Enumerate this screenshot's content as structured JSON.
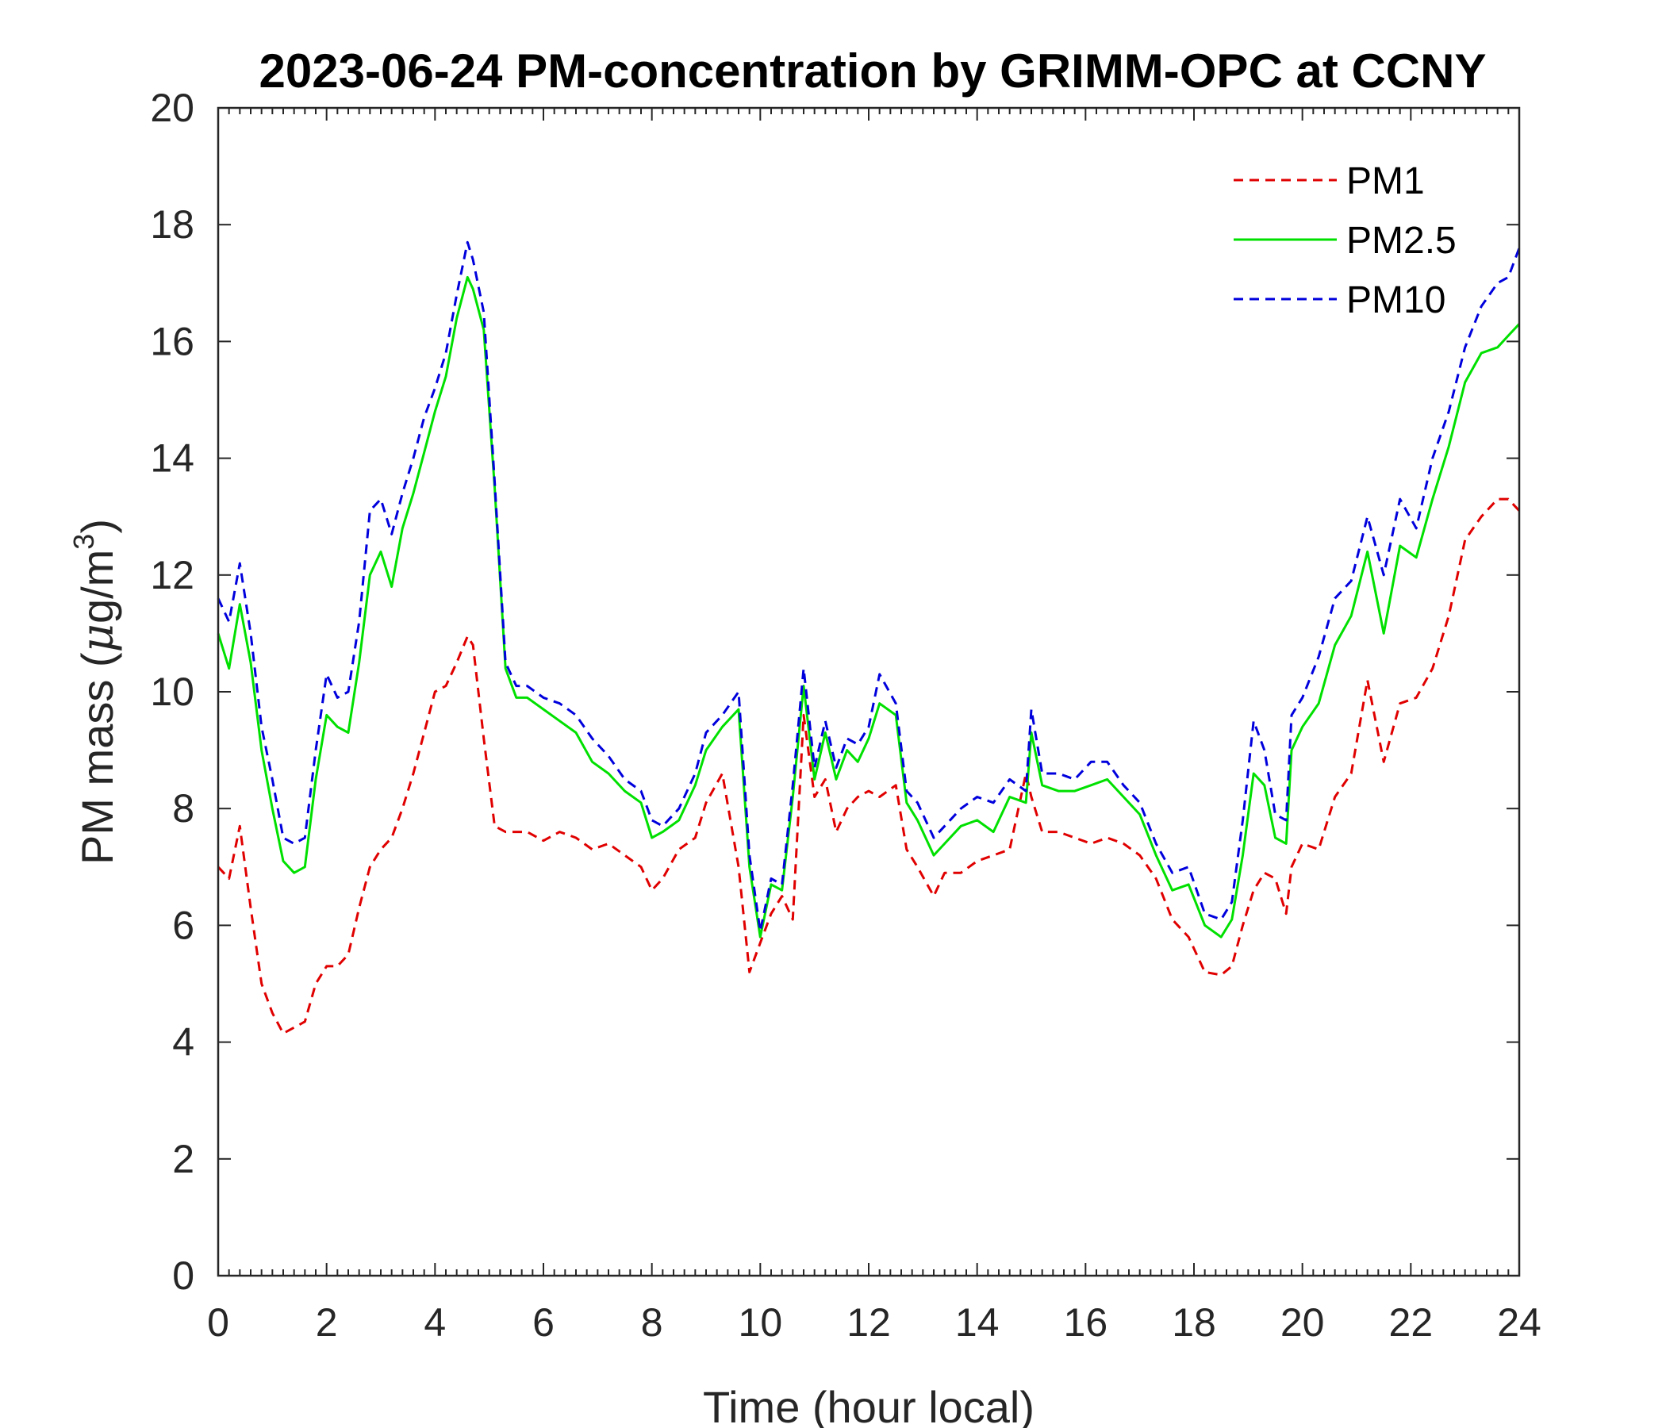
{
  "chart_data": {
    "type": "line",
    "title": "2023-06-24 PM-concentration by GRIMM-OPC at CCNY",
    "xlabel": "Time (hour local)",
    "ylabel_main": "PM mass (",
    "ylabel_mu": "μ",
    "ylabel_unit": "g/m",
    "ylabel_sup": "3",
    "ylabel_close": ")",
    "xlim": [
      0,
      24
    ],
    "ylim": [
      0,
      20
    ],
    "xticks": [
      "0",
      "2",
      "4",
      "6",
      "8",
      "10",
      "12",
      "14",
      "16",
      "18",
      "20",
      "22",
      "24"
    ],
    "yticks": [
      "0",
      "2",
      "4",
      "6",
      "8",
      "10",
      "12",
      "14",
      "16",
      "18",
      "20"
    ],
    "legend_position": "top-right",
    "x": [
      0,
      0.2,
      0.4,
      0.6,
      0.8,
      1.0,
      1.2,
      1.4,
      1.6,
      1.8,
      2.0,
      2.2,
      2.4,
      2.6,
      2.8,
      3.0,
      3.2,
      3.4,
      3.6,
      3.8,
      4.0,
      4.2,
      4.4,
      4.6,
      4.7,
      4.9,
      5.1,
      5.3,
      5.5,
      5.7,
      6.0,
      6.3,
      6.6,
      6.9,
      7.2,
      7.5,
      7.8,
      8.0,
      8.2,
      8.5,
      8.8,
      9.0,
      9.3,
      9.6,
      9.8,
      10.0,
      10.2,
      10.4,
      10.6,
      10.8,
      11.0,
      11.2,
      11.4,
      11.6,
      11.8,
      12.0,
      12.2,
      12.5,
      12.7,
      12.9,
      13.2,
      13.4,
      13.7,
      14.0,
      14.3,
      14.6,
      14.9,
      15.0,
      15.2,
      15.5,
      15.8,
      16.1,
      16.4,
      16.7,
      17.0,
      17.3,
      17.6,
      17.9,
      18.2,
      18.5,
      18.7,
      18.9,
      19.1,
      19.3,
      19.5,
      19.7,
      19.8,
      20.0,
      20.3,
      20.6,
      20.9,
      21.2,
      21.5,
      21.8,
      22.1,
      22.4,
      22.7,
      23.0,
      23.3,
      23.6,
      23.8,
      24.0
    ],
    "series": [
      {
        "name": "PM1",
        "color": "#e00000",
        "dash": "dashed",
        "values": [
          7.0,
          6.8,
          7.7,
          6.3,
          5.0,
          4.5,
          4.15,
          4.25,
          4.35,
          5.0,
          5.3,
          5.3,
          5.5,
          6.3,
          7.0,
          7.3,
          7.5,
          8.0,
          8.6,
          9.3,
          10.0,
          10.1,
          10.5,
          10.95,
          10.8,
          9.2,
          7.7,
          7.6,
          7.6,
          7.6,
          7.45,
          7.6,
          7.5,
          7.3,
          7.4,
          7.2,
          7.0,
          6.6,
          6.8,
          7.3,
          7.5,
          8.1,
          8.6,
          7.0,
          5.2,
          5.7,
          6.2,
          6.5,
          6.1,
          9.6,
          8.2,
          8.5,
          7.6,
          8.0,
          8.2,
          8.3,
          8.2,
          8.4,
          7.3,
          7.0,
          6.5,
          6.9,
          6.9,
          7.1,
          7.2,
          7.3,
          8.6,
          8.2,
          7.6,
          7.6,
          7.5,
          7.4,
          7.5,
          7.4,
          7.2,
          6.8,
          6.1,
          5.8,
          5.2,
          5.15,
          5.3,
          6.0,
          6.6,
          6.9,
          6.8,
          6.2,
          7.0,
          7.4,
          7.3,
          8.2,
          8.6,
          10.2,
          8.8,
          9.8,
          9.9,
          10.4,
          11.3,
          12.6,
          13.0,
          13.3,
          13.3,
          13.1
        ]
      },
      {
        "name": "PM2.5",
        "color": "#00e000",
        "dash": "solid",
        "values": [
          11.0,
          10.4,
          11.5,
          10.5,
          9.0,
          8.0,
          7.1,
          6.9,
          7.0,
          8.5,
          9.6,
          9.4,
          9.3,
          10.5,
          12.0,
          12.4,
          11.8,
          12.8,
          13.4,
          14.1,
          14.8,
          15.4,
          16.4,
          17.1,
          16.9,
          16.2,
          13.5,
          10.4,
          9.9,
          9.9,
          9.7,
          9.5,
          9.3,
          8.8,
          8.6,
          8.3,
          8.1,
          7.5,
          7.6,
          7.8,
          8.4,
          9.0,
          9.4,
          9.7,
          7.0,
          5.8,
          6.7,
          6.6,
          8.2,
          10.1,
          8.5,
          9.3,
          8.5,
          9.0,
          8.8,
          9.2,
          9.8,
          9.6,
          8.1,
          7.8,
          7.2,
          7.4,
          7.7,
          7.8,
          7.6,
          8.2,
          8.1,
          9.3,
          8.4,
          8.3,
          8.3,
          8.4,
          8.5,
          8.2,
          7.9,
          7.2,
          6.6,
          6.7,
          6.0,
          5.8,
          6.1,
          7.2,
          8.6,
          8.4,
          7.5,
          7.4,
          9.0,
          9.4,
          9.8,
          10.8,
          11.3,
          12.4,
          11.0,
          12.5,
          12.3,
          13.3,
          14.2,
          15.3,
          15.8,
          15.9,
          16.1,
          16.3
        ]
      },
      {
        "name": "PM10",
        "color": "#0000dd",
        "dash": "dashed",
        "values": [
          11.6,
          11.2,
          12.2,
          11.0,
          9.4,
          8.5,
          7.5,
          7.4,
          7.5,
          9.0,
          10.3,
          9.9,
          10.0,
          11.2,
          13.1,
          13.3,
          12.7,
          13.4,
          14.0,
          14.7,
          15.2,
          15.8,
          16.8,
          17.7,
          17.4,
          16.5,
          13.6,
          10.5,
          10.1,
          10.1,
          9.9,
          9.8,
          9.6,
          9.2,
          8.9,
          8.5,
          8.3,
          7.8,
          7.7,
          8.0,
          8.6,
          9.3,
          9.6,
          10.0,
          7.2,
          5.9,
          6.8,
          6.7,
          8.4,
          10.4,
          8.7,
          9.5,
          8.7,
          9.2,
          9.1,
          9.4,
          10.3,
          9.8,
          8.3,
          8.1,
          7.5,
          7.7,
          8.0,
          8.2,
          8.1,
          8.5,
          8.3,
          9.7,
          8.6,
          8.6,
          8.5,
          8.8,
          8.8,
          8.4,
          8.1,
          7.4,
          6.9,
          7.0,
          6.2,
          6.1,
          6.4,
          7.8,
          9.5,
          9.0,
          7.9,
          7.8,
          9.6,
          9.9,
          10.6,
          11.6,
          11.9,
          13.0,
          12.0,
          13.3,
          12.8,
          14.0,
          14.8,
          15.9,
          16.6,
          17.0,
          17.1,
          17.6
        ]
      }
    ]
  }
}
